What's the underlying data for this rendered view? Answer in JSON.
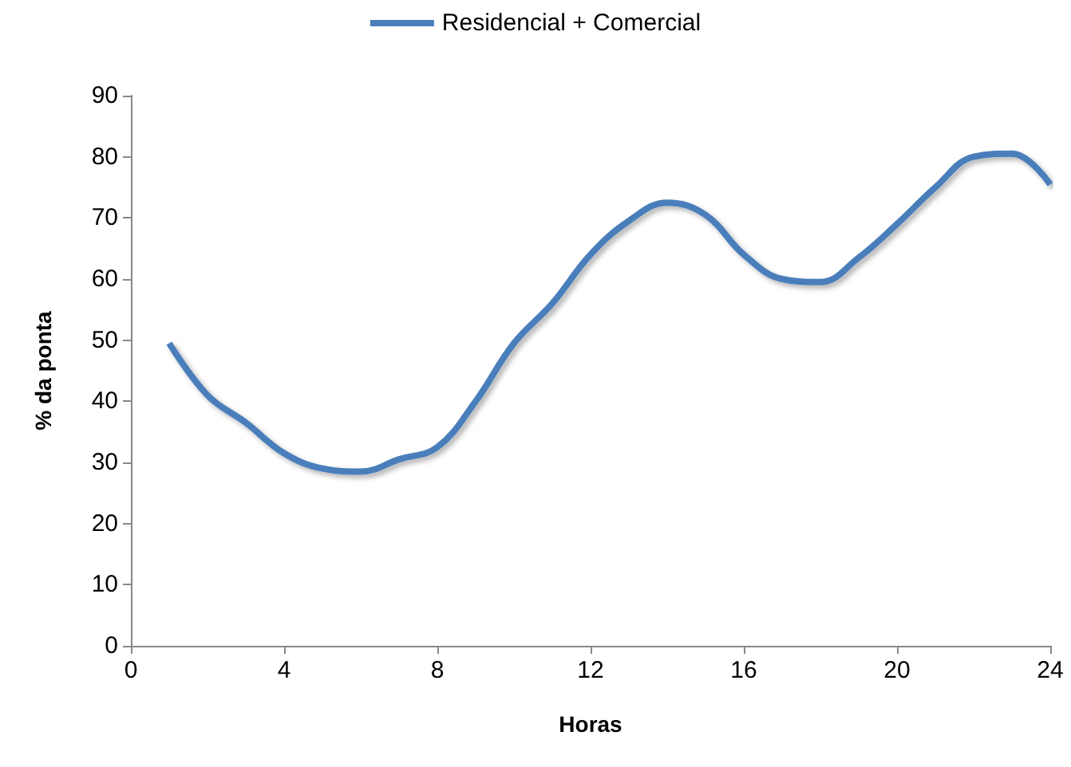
{
  "chart_data": {
    "type": "line",
    "xlabel": "Horas",
    "ylabel": "% da ponta",
    "x": [
      1,
      2,
      3,
      4,
      5,
      6,
      7,
      8,
      9,
      10,
      11,
      12,
      13,
      14,
      15,
      16,
      17,
      18,
      19,
      20,
      21,
      22,
      23,
      24
    ],
    "series": [
      {
        "name": "Residencial + Comercial",
        "color": "#4a7ebb",
        "values": [
          49.5,
          41,
          36.5,
          31.5,
          29,
          28.5,
          30.5,
          32.5,
          40,
          49.5,
          56,
          64,
          69.5,
          72.5,
          70.5,
          64,
          60,
          59.5,
          63.5,
          69,
          75,
          80,
          80.5,
          75.5
        ]
      }
    ],
    "xlim": [
      0,
      24
    ],
    "xticks": [
      0,
      4,
      8,
      12,
      16,
      20,
      24
    ],
    "ylim": [
      0,
      90
    ],
    "yticks": [
      0,
      10,
      20,
      30,
      40,
      50,
      60,
      70,
      80,
      90
    ],
    "grid": false,
    "legend": "top",
    "marker": "none",
    "line_style": "solid"
  }
}
